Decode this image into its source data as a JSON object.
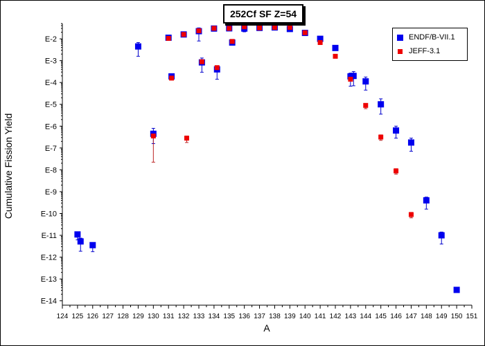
{
  "chart_data": {
    "type": "scatter",
    "title": "252Cf SF Z=54",
    "xlabel": "A",
    "ylabel": "Cumulative Fission Yield",
    "x_ticks": [
      124,
      125,
      126,
      127,
      128,
      129,
      130,
      131,
      132,
      133,
      134,
      135,
      136,
      137,
      138,
      139,
      140,
      141,
      142,
      143,
      144,
      145,
      146,
      147,
      148,
      149,
      150,
      151
    ],
    "xlim": [
      124,
      151
    ],
    "y_scale": "log",
    "y_ticks": [
      "E-2",
      "E-3",
      "E-4",
      "E-5",
      "E-6",
      "E-7",
      "E-8",
      "E-9",
      "E-10",
      "E-11",
      "E-12",
      "E-13",
      "E-14"
    ],
    "y_tick_exponents": [
      -2,
      -3,
      -4,
      -5,
      -6,
      -7,
      -8,
      -9,
      -10,
      -11,
      -12,
      -13,
      -14
    ],
    "ylim_exponent": [
      -14.2,
      -1.3
    ],
    "legend_position": "top-right",
    "series": [
      {
        "name": "ENDF/B-VII.1",
        "color": "#0000ee",
        "marker": "square-large",
        "points": [
          {
            "x": 125,
            "y_exp": -10.96,
            "err_lo": 0.25,
            "err_hi": 0.08
          },
          {
            "x": 125.2,
            "y_exp": -11.28,
            "err_lo": 0.45,
            "err_hi": 0.15
          },
          {
            "x": 126,
            "y_exp": -11.45,
            "err_lo": 0.3,
            "err_hi": 0.1
          },
          {
            "x": 129,
            "y_exp": -2.35,
            "err_lo": 0.45,
            "err_hi": 0.18
          },
          {
            "x": 130,
            "y_exp": -6.35,
            "err_lo": 0.45,
            "err_hi": 0.25
          },
          {
            "x": 131,
            "y_exp": -1.95,
            "err_lo": 0.05,
            "err_hi": 0.05
          },
          {
            "x": 131.2,
            "y_exp": -3.72,
            "err_lo": 0.15,
            "err_hi": 0.1
          },
          {
            "x": 132,
            "y_exp": -1.8,
            "err_lo": 0.05,
            "err_hi": 0.05
          },
          {
            "x": 133,
            "y_exp": -1.65,
            "err_lo": 0.45,
            "err_hi": 0.15
          },
          {
            "x": 133.2,
            "y_exp": -3.08,
            "err_lo": 0.45,
            "err_hi": 0.2
          },
          {
            "x": 134,
            "y_exp": -1.53,
            "err_lo": 0.08,
            "err_hi": 0.1
          },
          {
            "x": 134.2,
            "y_exp": -3.4,
            "err_lo": 0.45,
            "err_hi": 0.15
          },
          {
            "x": 135,
            "y_exp": -1.52,
            "err_lo": 0.05,
            "err_hi": 0.05
          },
          {
            "x": 135.2,
            "y_exp": -2.17,
            "err_lo": 0.1,
            "err_hi": 0.05
          },
          {
            "x": 136,
            "y_exp": -1.53,
            "err_lo": 0.15,
            "err_hi": 0.08
          },
          {
            "x": 137,
            "y_exp": -1.5,
            "err_lo": 0.05,
            "err_hi": 0.05
          },
          {
            "x": 138,
            "y_exp": -1.48,
            "err_lo": 0.05,
            "err_hi": 0.05
          },
          {
            "x": 139,
            "y_exp": -1.55,
            "err_lo": 0.08,
            "err_hi": 0.05
          },
          {
            "x": 140,
            "y_exp": -1.73,
            "err_lo": 0.05,
            "err_hi": 0.05
          },
          {
            "x": 141,
            "y_exp": -2.0,
            "err_lo": 0.05,
            "err_hi": 0.05
          },
          {
            "x": 142,
            "y_exp": -2.42,
            "err_lo": 0.1,
            "err_hi": 0.1
          },
          {
            "x": 143,
            "y_exp": -3.72,
            "err_lo": 0.45,
            "err_hi": 0.15
          },
          {
            "x": 143.2,
            "y_exp": -3.7,
            "err_lo": 0.45,
            "err_hi": 0.2
          },
          {
            "x": 144,
            "y_exp": -3.95,
            "err_lo": 0.4,
            "err_hi": 0.2
          },
          {
            "x": 145,
            "y_exp": -5.0,
            "err_lo": 0.45,
            "err_hi": 0.25
          },
          {
            "x": 146,
            "y_exp": -6.2,
            "err_lo": 0.35,
            "err_hi": 0.2
          },
          {
            "x": 147,
            "y_exp": -6.75,
            "err_lo": 0.4,
            "err_hi": 0.2
          },
          {
            "x": 148,
            "y_exp": -9.4,
            "err_lo": 0.4,
            "err_hi": 0.15
          },
          {
            "x": 149,
            "y_exp": -11.0,
            "err_lo": 0.4,
            "err_hi": 0.15
          },
          {
            "x": 150,
            "y_exp": -13.5,
            "err_lo": 0.05,
            "err_hi": 0.05
          }
        ]
      },
      {
        "name": "JEFF-3.1",
        "color": "#ee0000",
        "marker": "square-small",
        "points": [
          {
            "x": 130,
            "y_exp": -6.45,
            "err_lo": 1.2,
            "err_hi": 0.2
          },
          {
            "x": 131,
            "y_exp": -1.98,
            "err_lo": 0.05,
            "err_hi": 0.05
          },
          {
            "x": 131.2,
            "y_exp": -3.8,
            "err_lo": 0.05,
            "err_hi": 0.05
          },
          {
            "x": 132,
            "y_exp": -1.8,
            "err_lo": 0.05,
            "err_hi": 0.05
          },
          {
            "x": 132.2,
            "y_exp": -6.55,
            "err_lo": 0.2,
            "err_hi": 0.1
          },
          {
            "x": 133,
            "y_exp": -1.63,
            "err_lo": 0.05,
            "err_hi": 0.05
          },
          {
            "x": 133.2,
            "y_exp": -3.05,
            "err_lo": 0.05,
            "err_hi": 0.05
          },
          {
            "x": 134,
            "y_exp": -1.52,
            "err_lo": 0.05,
            "err_hi": 0.05
          },
          {
            "x": 134.2,
            "y_exp": -3.32,
            "err_lo": 0.05,
            "err_hi": 0.05
          },
          {
            "x": 135,
            "y_exp": -1.52,
            "err_lo": 0.05,
            "err_hi": 0.05
          },
          {
            "x": 135.2,
            "y_exp": -2.12,
            "err_lo": 0.05,
            "err_hi": 0.05
          },
          {
            "x": 136,
            "y_exp": -1.45,
            "err_lo": 0.05,
            "err_hi": 0.05
          },
          {
            "x": 137,
            "y_exp": -1.5,
            "err_lo": 0.05,
            "err_hi": 0.05
          },
          {
            "x": 138,
            "y_exp": -1.48,
            "err_lo": 0.05,
            "err_hi": 0.05
          },
          {
            "x": 139,
            "y_exp": -1.48,
            "err_lo": 0.05,
            "err_hi": 0.05
          },
          {
            "x": 140,
            "y_exp": -1.72,
            "err_lo": 0.05,
            "err_hi": 0.05
          },
          {
            "x": 141,
            "y_exp": -2.17,
            "err_lo": 0.05,
            "err_hi": 0.05
          },
          {
            "x": 142,
            "y_exp": -2.8,
            "err_lo": 0.05,
            "err_hi": 0.05
          },
          {
            "x": 143,
            "y_exp": -3.85,
            "err_lo": 0.05,
            "err_hi": 0.05
          },
          {
            "x": 144,
            "y_exp": -5.05,
            "err_lo": 0.15,
            "err_hi": 0.05
          },
          {
            "x": 145,
            "y_exp": -6.5,
            "err_lo": 0.15,
            "err_hi": 0.1
          },
          {
            "x": 146,
            "y_exp": -8.05,
            "err_lo": 0.15,
            "err_hi": 0.1
          },
          {
            "x": 147,
            "y_exp": -10.05,
            "err_lo": 0.15,
            "err_hi": 0.1
          }
        ]
      }
    ]
  },
  "colors": {
    "endf": "#0000ee",
    "jeff": "#ee0000",
    "axis": "#000000"
  }
}
